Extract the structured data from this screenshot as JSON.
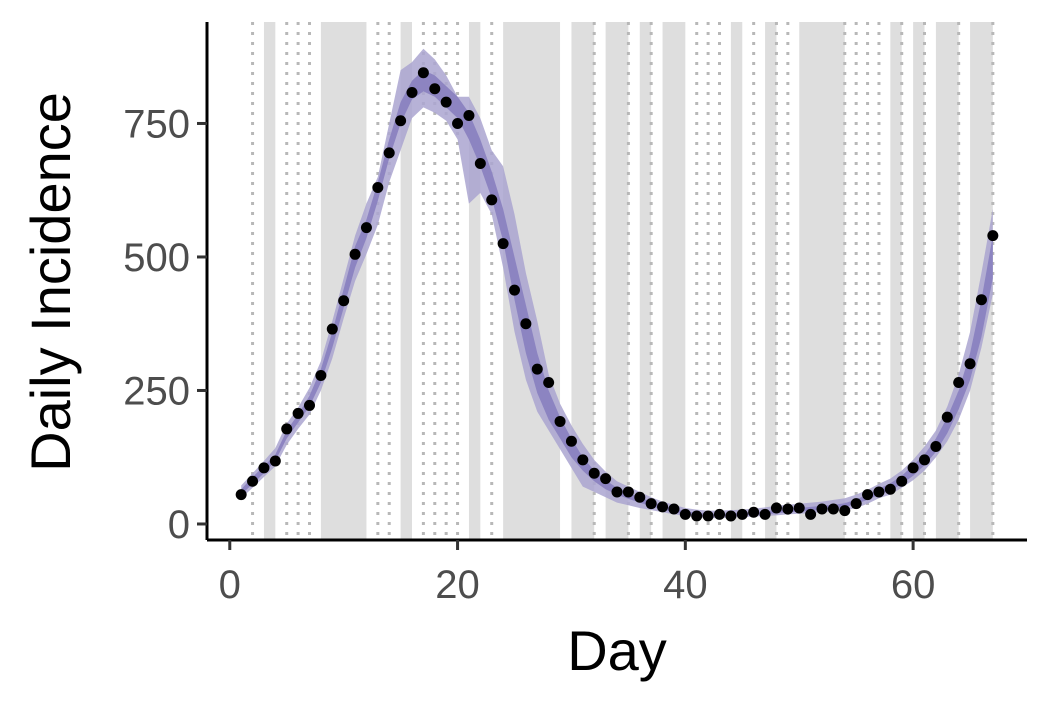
{
  "chart_data": {
    "type": "line",
    "title": "",
    "xlabel": "Day",
    "ylabel": "Daily Incidence",
    "xlim": [
      -2,
      70
    ],
    "ylim": [
      -30,
      940
    ],
    "x_ticks": [
      0,
      20,
      40,
      60
    ],
    "y_ticks": [
      0,
      250,
      500,
      750
    ],
    "grid": false,
    "legend": "none",
    "colors": {
      "outer_band": "#aaa4d0",
      "inner_band": "#8a82c0",
      "points": "#000000",
      "shade": "#dedede",
      "vline": "#b8b8b8",
      "axis": "#000000",
      "tick_text": "#4d4d4d"
    },
    "shaded_intervals": [
      [
        3,
        4
      ],
      [
        8,
        12
      ],
      [
        15,
        16
      ],
      [
        21,
        22
      ],
      [
        24,
        29
      ],
      [
        30,
        32
      ],
      [
        33,
        35
      ],
      [
        36,
        37
      ],
      [
        38,
        40
      ],
      [
        44,
        45
      ],
      [
        47,
        48
      ],
      [
        50,
        54
      ],
      [
        58,
        59
      ],
      [
        60,
        61
      ],
      [
        62,
        64
      ],
      [
        65,
        67
      ]
    ],
    "dotted_vlines": [
      2,
      5,
      6,
      7,
      13,
      14,
      17,
      18,
      19,
      20,
      23,
      32,
      35,
      37,
      41,
      42,
      43,
      46,
      48,
      49,
      54,
      55,
      56,
      57,
      59,
      61,
      64,
      67
    ],
    "x": [
      1,
      2,
      3,
      4,
      5,
      6,
      7,
      8,
      9,
      10,
      11,
      12,
      13,
      14,
      15,
      16,
      17,
      18,
      19,
      20,
      21,
      22,
      23,
      24,
      25,
      26,
      27,
      28,
      29,
      30,
      31,
      32,
      33,
      34,
      35,
      36,
      37,
      38,
      39,
      40,
      41,
      42,
      43,
      44,
      45,
      46,
      47,
      48,
      49,
      50,
      51,
      52,
      53,
      54,
      55,
      56,
      57,
      58,
      59,
      60,
      61,
      62,
      63,
      64,
      65,
      66,
      67
    ],
    "observed": [
      55,
      80,
      105,
      118,
      178,
      207,
      222,
      278,
      365,
      418,
      505,
      555,
      630,
      695,
      755,
      808,
      845,
      815,
      790,
      750,
      765,
      675,
      607,
      525,
      438,
      375,
      290,
      265,
      192,
      155,
      120,
      95,
      85,
      60,
      60,
      50,
      38,
      32,
      28,
      18,
      15,
      15,
      18,
      15,
      18,
      22,
      18,
      30,
      28,
      30,
      18,
      28,
      28,
      25,
      38,
      55,
      60,
      65,
      80,
      105,
      120,
      145,
      200,
      265,
      300,
      420,
      540
    ],
    "inner_lower": [
      55,
      75,
      95,
      118,
      160,
      190,
      220,
      265,
      330,
      405,
      480,
      535,
      605,
      685,
      750,
      795,
      810,
      800,
      780,
      760,
      720,
      670,
      610,
      530,
      420,
      320,
      245,
      195,
      160,
      125,
      100,
      80,
      65,
      55,
      47,
      40,
      33,
      27,
      22,
      18,
      16,
      14,
      14,
      15,
      16,
      17,
      18,
      20,
      22,
      23,
      25,
      27,
      29,
      31,
      38,
      45,
      55,
      62,
      75,
      90,
      110,
      135,
      170,
      215,
      270,
      350,
      460
    ],
    "inner_upper": [
      65,
      88,
      108,
      130,
      175,
      205,
      240,
      290,
      360,
      440,
      520,
      570,
      640,
      720,
      790,
      830,
      850,
      840,
      820,
      800,
      770,
      720,
      660,
      590,
      500,
      410,
      320,
      250,
      200,
      160,
      125,
      100,
      82,
      68,
      58,
      50,
      42,
      35,
      29,
      24,
      21,
      19,
      19,
      20,
      21,
      22,
      24,
      26,
      28,
      30,
      32,
      34,
      36,
      39,
      46,
      55,
      66,
      76,
      90,
      110,
      130,
      160,
      200,
      250,
      320,
      420,
      540
    ],
    "outer_lower": [
      48,
      68,
      88,
      108,
      148,
      178,
      205,
      250,
      310,
      385,
      455,
      505,
      560,
      640,
      700,
      760,
      780,
      770,
      755,
      720,
      600,
      620,
      580,
      480,
      360,
      270,
      210,
      175,
      140,
      105,
      70,
      60,
      50,
      40,
      35,
      30,
      26,
      22,
      18,
      15,
      13,
      11,
      11,
      12,
      13,
      14,
      15,
      16,
      18,
      19,
      20,
      22,
      24,
      25,
      30,
      38,
      48,
      55,
      68,
      82,
      100,
      125,
      155,
      195,
      250,
      330,
      430
    ],
    "outer_upper": [
      72,
      95,
      118,
      142,
      188,
      218,
      255,
      305,
      380,
      460,
      540,
      600,
      650,
      750,
      850,
      865,
      890,
      870,
      840,
      800,
      800,
      760,
      700,
      670,
      580,
      470,
      380,
      280,
      225,
      185,
      150,
      120,
      98,
      80,
      70,
      60,
      50,
      42,
      36,
      30,
      27,
      25,
      25,
      26,
      27,
      29,
      31,
      34,
      36,
      38,
      40,
      42,
      45,
      48,
      55,
      64,
      75,
      85,
      100,
      120,
      145,
      175,
      220,
      280,
      360,
      470,
      590
    ]
  }
}
